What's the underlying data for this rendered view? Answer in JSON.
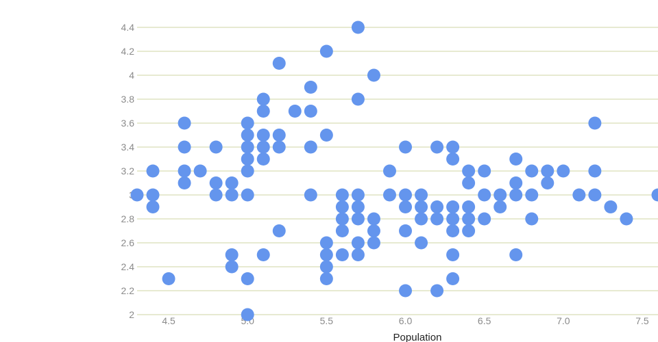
{
  "chart_data": {
    "type": "scatter",
    "title": "",
    "xlabel": "Population",
    "ylabel": "",
    "xlim": [
      4.3,
      7.6
    ],
    "ylim": [
      2.0,
      4.4
    ],
    "grid": true,
    "x_ticks": [
      "4.5",
      "5.0",
      "5.5",
      "6.0",
      "6.5",
      "7.0",
      "7.5"
    ],
    "y_ticks": [
      "2",
      "2.2",
      "2.4",
      "2.6",
      "2.8",
      "3",
      "3.2",
      "3.4",
      "3.6",
      "3.8",
      "4",
      "4.2",
      "4.4"
    ],
    "point_color": "#6495ed",
    "grid_color": "#dfe3c2",
    "top_line_color": "#c9c08a",
    "points": [
      [
        4.3,
        3.0
      ],
      [
        4.4,
        3.2
      ],
      [
        4.4,
        3.0
      ],
      [
        4.4,
        2.9
      ],
      [
        4.5,
        2.3
      ],
      [
        4.6,
        3.6
      ],
      [
        4.6,
        3.4
      ],
      [
        4.6,
        3.2
      ],
      [
        4.6,
        3.1
      ],
      [
        4.7,
        3.2
      ],
      [
        4.8,
        3.4
      ],
      [
        4.8,
        3.1
      ],
      [
        4.8,
        3.0
      ],
      [
        4.9,
        3.1
      ],
      [
        4.9,
        3.0
      ],
      [
        4.9,
        2.5
      ],
      [
        4.9,
        2.4
      ],
      [
        5.0,
        3.6
      ],
      [
        5.0,
        3.5
      ],
      [
        5.0,
        3.4
      ],
      [
        5.0,
        3.3
      ],
      [
        5.0,
        3.2
      ],
      [
        5.0,
        3.0
      ],
      [
        5.0,
        2.3
      ],
      [
        5.0,
        2.0
      ],
      [
        5.1,
        3.8
      ],
      [
        5.1,
        3.7
      ],
      [
        5.1,
        3.5
      ],
      [
        5.1,
        3.4
      ],
      [
        5.1,
        3.3
      ],
      [
        5.1,
        2.5
      ],
      [
        5.2,
        4.1
      ],
      [
        5.2,
        3.5
      ],
      [
        5.2,
        3.4
      ],
      [
        5.2,
        2.7
      ],
      [
        5.3,
        3.7
      ],
      [
        5.4,
        3.9
      ],
      [
        5.4,
        3.7
      ],
      [
        5.4,
        3.4
      ],
      [
        5.4,
        3.0
      ],
      [
        5.5,
        4.2
      ],
      [
        5.5,
        3.5
      ],
      [
        5.5,
        2.6
      ],
      [
        5.5,
        2.5
      ],
      [
        5.5,
        2.4
      ],
      [
        5.5,
        2.3
      ],
      [
        5.6,
        3.0
      ],
      [
        5.6,
        2.9
      ],
      [
        5.6,
        2.8
      ],
      [
        5.6,
        2.7
      ],
      [
        5.6,
        2.5
      ],
      [
        5.7,
        4.4
      ],
      [
        5.7,
        3.8
      ],
      [
        5.7,
        3.0
      ],
      [
        5.7,
        2.9
      ],
      [
        5.7,
        2.8
      ],
      [
        5.7,
        2.6
      ],
      [
        5.7,
        2.5
      ],
      [
        5.8,
        4.0
      ],
      [
        5.8,
        2.8
      ],
      [
        5.8,
        2.7
      ],
      [
        5.8,
        2.6
      ],
      [
        5.9,
        3.2
      ],
      [
        5.9,
        3.0
      ],
      [
        6.0,
        3.4
      ],
      [
        6.0,
        3.0
      ],
      [
        6.0,
        2.9
      ],
      [
        6.0,
        2.7
      ],
      [
        6.0,
        2.2
      ],
      [
        6.1,
        3.0
      ],
      [
        6.1,
        2.9
      ],
      [
        6.1,
        2.8
      ],
      [
        6.1,
        2.6
      ],
      [
        6.2,
        3.4
      ],
      [
        6.2,
        2.9
      ],
      [
        6.2,
        2.8
      ],
      [
        6.2,
        2.2
      ],
      [
        6.3,
        3.4
      ],
      [
        6.3,
        3.3
      ],
      [
        6.3,
        2.9
      ],
      [
        6.3,
        2.8
      ],
      [
        6.3,
        2.7
      ],
      [
        6.3,
        2.5
      ],
      [
        6.3,
        2.3
      ],
      [
        6.4,
        3.2
      ],
      [
        6.4,
        3.1
      ],
      [
        6.4,
        2.9
      ],
      [
        6.4,
        2.8
      ],
      [
        6.4,
        2.7
      ],
      [
        6.5,
        3.2
      ],
      [
        6.5,
        3.0
      ],
      [
        6.5,
        2.8
      ],
      [
        6.6,
        3.0
      ],
      [
        6.6,
        2.9
      ],
      [
        6.7,
        3.3
      ],
      [
        6.7,
        3.1
      ],
      [
        6.7,
        3.0
      ],
      [
        6.7,
        2.5
      ],
      [
        6.8,
        3.2
      ],
      [
        6.8,
        3.0
      ],
      [
        6.8,
        2.8
      ],
      [
        6.9,
        3.2
      ],
      [
        6.9,
        3.1
      ],
      [
        7.0,
        3.2
      ],
      [
        7.1,
        3.0
      ],
      [
        7.2,
        3.6
      ],
      [
        7.2,
        3.2
      ],
      [
        7.2,
        3.0
      ],
      [
        7.3,
        2.9
      ],
      [
        7.4,
        2.8
      ],
      [
        7.6,
        3.0
      ]
    ]
  }
}
